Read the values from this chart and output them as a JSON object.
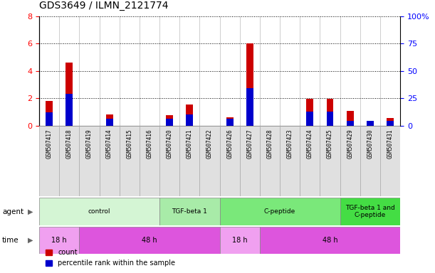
{
  "title": "GDS3649 / ILMN_2121774",
  "samples": [
    "GSM507417",
    "GSM507418",
    "GSM507419",
    "GSM507414",
    "GSM507415",
    "GSM507416",
    "GSM507420",
    "GSM507421",
    "GSM507422",
    "GSM507426",
    "GSM507427",
    "GSM507428",
    "GSM507423",
    "GSM507424",
    "GSM507425",
    "GSM507429",
    "GSM507430",
    "GSM507431"
  ],
  "count_values": [
    1.8,
    4.6,
    0.0,
    0.8,
    0.0,
    0.0,
    0.75,
    1.55,
    0.0,
    0.6,
    6.0,
    0.0,
    0.0,
    1.95,
    1.95,
    1.1,
    0.0,
    0.55
  ],
  "pct_values": [
    12.0,
    29.0,
    0.0,
    6.0,
    0.0,
    0.0,
    6.0,
    10.0,
    0.0,
    6.0,
    34.0,
    0.0,
    0.0,
    13.0,
    13.0,
    4.0,
    4.5,
    4.0
  ],
  "ylim_left": [
    0,
    8
  ],
  "ylim_right": [
    0,
    100
  ],
  "yticks_left": [
    0,
    2,
    4,
    6,
    8
  ],
  "yticks_right": [
    0,
    25,
    50,
    75,
    100
  ],
  "agent_groups": [
    {
      "label": "control",
      "start": 0,
      "end": 6,
      "color": "#d4f5d4"
    },
    {
      "label": "TGF-beta 1",
      "start": 6,
      "end": 9,
      "color": "#a8eba8"
    },
    {
      "label": "C-peptide",
      "start": 9,
      "end": 15,
      "color": "#7ae87a"
    },
    {
      "label": "TGF-beta 1 and\nC-peptide",
      "start": 15,
      "end": 18,
      "color": "#44dd44"
    }
  ],
  "time_groups": [
    {
      "label": "18 h",
      "start": 0,
      "end": 2,
      "color": "#f0a0f0"
    },
    {
      "label": "48 h",
      "start": 2,
      "end": 9,
      "color": "#dd55dd"
    },
    {
      "label": "18 h",
      "start": 9,
      "end": 11,
      "color": "#f0a0f0"
    },
    {
      "label": "48 h",
      "start": 11,
      "end": 18,
      "color": "#dd55dd"
    }
  ],
  "bar_color_red": "#cc0000",
  "bar_color_blue": "#0000cc",
  "bar_width": 0.35,
  "bg_color": "#ffffff",
  "label_fontsize": 7,
  "title_fontsize": 10,
  "sample_box_color": "#e0e0e0"
}
